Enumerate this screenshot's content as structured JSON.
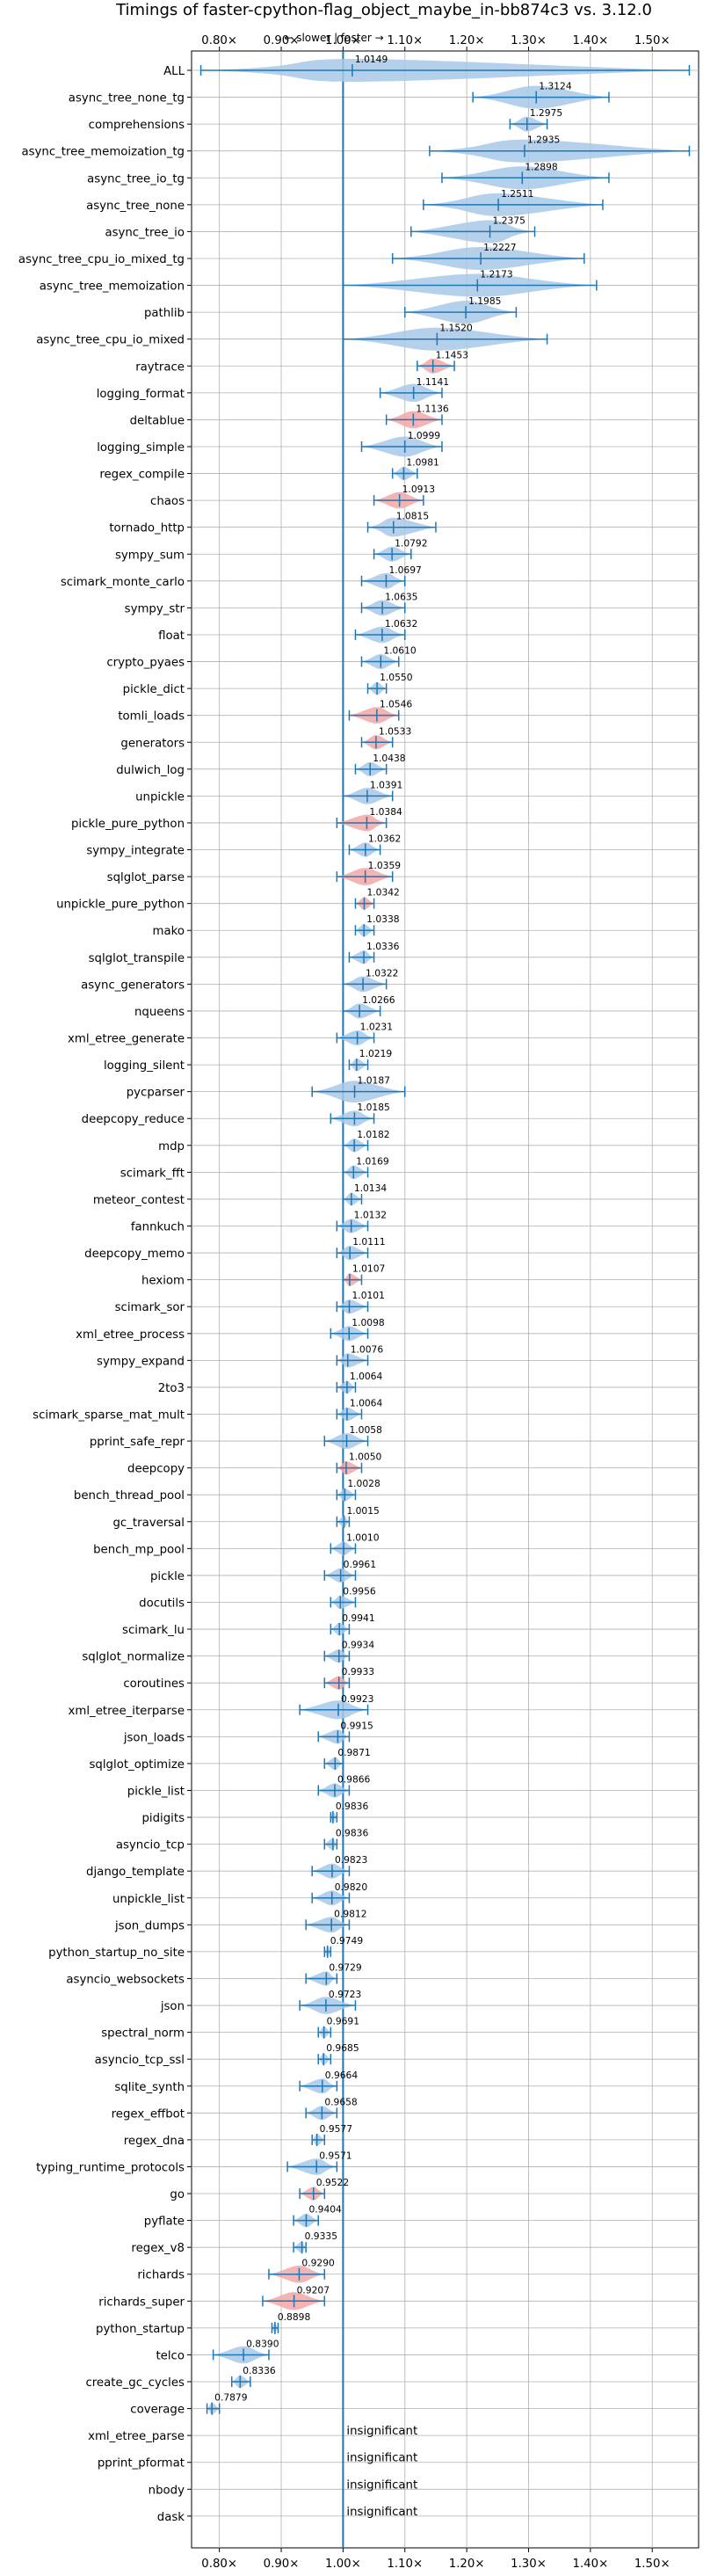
{
  "chart_data": {
    "type": "violin",
    "title": "Timings of faster-cpython-flag_object_maybe_in-bb874c3 vs. 3.12.0",
    "subtitle": "← slower | faster →",
    "xlim": [
      0.755,
      1.575
    ],
    "xticks": [
      "0.80×",
      "0.90×",
      "1.00×",
      "1.10×",
      "1.20×",
      "1.30×",
      "1.40×",
      "1.50×"
    ],
    "xtick_values": [
      0.8,
      0.9,
      1.0,
      1.1,
      1.2,
      1.3,
      1.4,
      1.5
    ],
    "grid": true,
    "reference_line": 1.0,
    "colors": {
      "faster": "#1f77b4",
      "slower": "#f4a6a6",
      "violin": "#a8c8e8",
      "insignificant_text": "insignificant"
    },
    "benchmarks": [
      {
        "name": "ALL",
        "value": 1.0149,
        "label": "1.0149",
        "min": 0.77,
        "max": 1.56,
        "color": "blue"
      },
      {
        "name": "async_tree_none_tg",
        "value": 1.3124,
        "label": "1.3124",
        "min": 1.21,
        "max": 1.43,
        "color": "blue"
      },
      {
        "name": "comprehensions",
        "value": 1.2975,
        "label": "1.2975",
        "min": 1.27,
        "max": 1.33,
        "color": "blue"
      },
      {
        "name": "async_tree_memoization_tg",
        "value": 1.2935,
        "label": "1.2935",
        "min": 1.14,
        "max": 1.56,
        "color": "blue"
      },
      {
        "name": "async_tree_io_tg",
        "value": 1.2898,
        "label": "1.2898",
        "min": 1.16,
        "max": 1.43,
        "color": "blue"
      },
      {
        "name": "async_tree_none",
        "value": 1.2511,
        "label": "1.2511",
        "min": 1.13,
        "max": 1.42,
        "color": "blue"
      },
      {
        "name": "async_tree_io",
        "value": 1.2375,
        "label": "1.2375",
        "min": 1.11,
        "max": 1.31,
        "color": "blue"
      },
      {
        "name": "async_tree_cpu_io_mixed_tg",
        "value": 1.2227,
        "label": "1.2227",
        "min": 1.08,
        "max": 1.39,
        "color": "blue"
      },
      {
        "name": "async_tree_memoization",
        "value": 1.2173,
        "label": "1.2173",
        "min": 1.0,
        "max": 1.41,
        "color": "blue"
      },
      {
        "name": "pathlib",
        "value": 1.1985,
        "label": "1.1985",
        "min": 1.1,
        "max": 1.28,
        "color": "blue"
      },
      {
        "name": "async_tree_cpu_io_mixed",
        "value": 1.152,
        "label": "1.1520",
        "min": 1.0,
        "max": 1.33,
        "color": "blue"
      },
      {
        "name": "raytrace",
        "value": 1.1453,
        "label": "1.1453",
        "min": 1.12,
        "max": 1.18,
        "color": "red"
      },
      {
        "name": "logging_format",
        "value": 1.1141,
        "label": "1.1141",
        "min": 1.06,
        "max": 1.16,
        "color": "blue"
      },
      {
        "name": "deltablue",
        "value": 1.1136,
        "label": "1.1136",
        "min": 1.07,
        "max": 1.16,
        "color": "red"
      },
      {
        "name": "logging_simple",
        "value": 1.0999,
        "label": "1.0999",
        "min": 1.03,
        "max": 1.16,
        "color": "blue"
      },
      {
        "name": "regex_compile",
        "value": 1.0981,
        "label": "1.0981",
        "min": 1.08,
        "max": 1.12,
        "color": "blue"
      },
      {
        "name": "chaos",
        "value": 1.0913,
        "label": "1.0913",
        "min": 1.05,
        "max": 1.13,
        "color": "red"
      },
      {
        "name": "tornado_http",
        "value": 1.0815,
        "label": "1.0815",
        "min": 1.04,
        "max": 1.15,
        "color": "blue"
      },
      {
        "name": "sympy_sum",
        "value": 1.0792,
        "label": "1.0792",
        "min": 1.05,
        "max": 1.11,
        "color": "blue"
      },
      {
        "name": "scimark_monte_carlo",
        "value": 1.0697,
        "label": "1.0697",
        "min": 1.03,
        "max": 1.1,
        "color": "blue"
      },
      {
        "name": "sympy_str",
        "value": 1.0635,
        "label": "1.0635",
        "min": 1.03,
        "max": 1.1,
        "color": "blue"
      },
      {
        "name": "float",
        "value": 1.0632,
        "label": "1.0632",
        "min": 1.02,
        "max": 1.1,
        "color": "blue"
      },
      {
        "name": "crypto_pyaes",
        "value": 1.061,
        "label": "1.0610",
        "min": 1.03,
        "max": 1.09,
        "color": "blue"
      },
      {
        "name": "pickle_dict",
        "value": 1.055,
        "label": "1.0550",
        "min": 1.04,
        "max": 1.07,
        "color": "blue"
      },
      {
        "name": "tomli_loads",
        "value": 1.0546,
        "label": "1.0546",
        "min": 1.01,
        "max": 1.09,
        "color": "red"
      },
      {
        "name": "generators",
        "value": 1.0533,
        "label": "1.0533",
        "min": 1.03,
        "max": 1.08,
        "color": "red"
      },
      {
        "name": "dulwich_log",
        "value": 1.0438,
        "label": "1.0438",
        "min": 1.02,
        "max": 1.07,
        "color": "blue"
      },
      {
        "name": "unpickle",
        "value": 1.0391,
        "label": "1.0391",
        "min": 1.0,
        "max": 1.08,
        "color": "blue"
      },
      {
        "name": "pickle_pure_python",
        "value": 1.0384,
        "label": "1.0384",
        "min": 0.99,
        "max": 1.07,
        "color": "red"
      },
      {
        "name": "sympy_integrate",
        "value": 1.0362,
        "label": "1.0362",
        "min": 1.01,
        "max": 1.06,
        "color": "blue"
      },
      {
        "name": "sqlglot_parse",
        "value": 1.0359,
        "label": "1.0359",
        "min": 0.99,
        "max": 1.08,
        "color": "red"
      },
      {
        "name": "unpickle_pure_python",
        "value": 1.0342,
        "label": "1.0342",
        "min": 1.02,
        "max": 1.05,
        "color": "red"
      },
      {
        "name": "mako",
        "value": 1.0338,
        "label": "1.0338",
        "min": 1.02,
        "max": 1.05,
        "color": "blue"
      },
      {
        "name": "sqlglot_transpile",
        "value": 1.0336,
        "label": "1.0336",
        "min": 1.01,
        "max": 1.05,
        "color": "blue"
      },
      {
        "name": "async_generators",
        "value": 1.0322,
        "label": "1.0322",
        "min": 1.0,
        "max": 1.07,
        "color": "blue"
      },
      {
        "name": "nqueens",
        "value": 1.0266,
        "label": "1.0266",
        "min": 1.0,
        "max": 1.06,
        "color": "blue"
      },
      {
        "name": "xml_etree_generate",
        "value": 1.0231,
        "label": "1.0231",
        "min": 0.99,
        "max": 1.05,
        "color": "blue"
      },
      {
        "name": "logging_silent",
        "value": 1.0219,
        "label": "1.0219",
        "min": 1.01,
        "max": 1.04,
        "color": "blue"
      },
      {
        "name": "pycparser",
        "value": 1.0187,
        "label": "1.0187",
        "min": 0.95,
        "max": 1.1,
        "color": "blue"
      },
      {
        "name": "deepcopy_reduce",
        "value": 1.0185,
        "label": "1.0185",
        "min": 0.98,
        "max": 1.05,
        "color": "blue"
      },
      {
        "name": "mdp",
        "value": 1.0182,
        "label": "1.0182",
        "min": 1.0,
        "max": 1.04,
        "color": "blue"
      },
      {
        "name": "scimark_fft",
        "value": 1.0169,
        "label": "1.0169",
        "min": 1.0,
        "max": 1.04,
        "color": "blue"
      },
      {
        "name": "meteor_contest",
        "value": 1.0134,
        "label": "1.0134",
        "min": 1.0,
        "max": 1.03,
        "color": "blue"
      },
      {
        "name": "fannkuch",
        "value": 1.0132,
        "label": "1.0132",
        "min": 0.99,
        "max": 1.04,
        "color": "blue"
      },
      {
        "name": "deepcopy_memo",
        "value": 1.0111,
        "label": "1.0111",
        "min": 0.99,
        "max": 1.04,
        "color": "blue"
      },
      {
        "name": "hexiom",
        "value": 1.0107,
        "label": "1.0107",
        "min": 1.0,
        "max": 1.03,
        "color": "red"
      },
      {
        "name": "scimark_sor",
        "value": 1.0101,
        "label": "1.0101",
        "min": 0.99,
        "max": 1.04,
        "color": "blue"
      },
      {
        "name": "xml_etree_process",
        "value": 1.0098,
        "label": "1.0098",
        "min": 0.98,
        "max": 1.04,
        "color": "blue"
      },
      {
        "name": "sympy_expand",
        "value": 1.0076,
        "label": "1.0076",
        "min": 0.99,
        "max": 1.04,
        "color": "blue"
      },
      {
        "name": "2to3",
        "value": 1.0064,
        "label": "1.0064",
        "min": 0.99,
        "max": 1.02,
        "color": "blue"
      },
      {
        "name": "scimark_sparse_mat_mult",
        "value": 1.0064,
        "label": "1.0064",
        "min": 0.99,
        "max": 1.03,
        "color": "blue"
      },
      {
        "name": "pprint_safe_repr",
        "value": 1.0058,
        "label": "1.0058",
        "min": 0.97,
        "max": 1.04,
        "color": "blue"
      },
      {
        "name": "deepcopy",
        "value": 1.005,
        "label": "1.0050",
        "min": 0.99,
        "max": 1.03,
        "color": "red"
      },
      {
        "name": "bench_thread_pool",
        "value": 1.0028,
        "label": "1.0028",
        "min": 0.99,
        "max": 1.02,
        "color": "blue"
      },
      {
        "name": "gc_traversal",
        "value": 1.0015,
        "label": "1.0015",
        "min": 0.99,
        "max": 1.01,
        "color": "blue"
      },
      {
        "name": "bench_mp_pool",
        "value": 1.001,
        "label": "1.0010",
        "min": 0.98,
        "max": 1.02,
        "color": "blue"
      },
      {
        "name": "pickle",
        "value": 0.9961,
        "label": "0.9961",
        "min": 0.97,
        "max": 1.02,
        "color": "blue"
      },
      {
        "name": "docutils",
        "value": 0.9956,
        "label": "0.9956",
        "min": 0.98,
        "max": 1.02,
        "color": "blue"
      },
      {
        "name": "scimark_lu",
        "value": 0.9941,
        "label": "0.9941",
        "min": 0.98,
        "max": 1.01,
        "color": "blue"
      },
      {
        "name": "sqlglot_normalize",
        "value": 0.9934,
        "label": "0.9934",
        "min": 0.97,
        "max": 1.01,
        "color": "blue"
      },
      {
        "name": "coroutines",
        "value": 0.9933,
        "label": "0.9933",
        "min": 0.97,
        "max": 1.01,
        "color": "red"
      },
      {
        "name": "xml_etree_iterparse",
        "value": 0.9923,
        "label": "0.9923",
        "min": 0.93,
        "max": 1.04,
        "color": "blue"
      },
      {
        "name": "json_loads",
        "value": 0.9915,
        "label": "0.9915",
        "min": 0.96,
        "max": 1.01,
        "color": "blue"
      },
      {
        "name": "sqlglot_optimize",
        "value": 0.9871,
        "label": "0.9871",
        "min": 0.97,
        "max": 1.0,
        "color": "blue"
      },
      {
        "name": "pickle_list",
        "value": 0.9866,
        "label": "0.9866",
        "min": 0.96,
        "max": 1.01,
        "color": "blue"
      },
      {
        "name": "pidigits",
        "value": 0.9836,
        "label": "0.9836",
        "min": 0.98,
        "max": 0.99,
        "color": "blue"
      },
      {
        "name": "asyncio_tcp",
        "value": 0.9836,
        "label": "0.9836",
        "min": 0.97,
        "max": 0.99,
        "color": "blue"
      },
      {
        "name": "django_template",
        "value": 0.9823,
        "label": "0.9823",
        "min": 0.95,
        "max": 1.01,
        "color": "blue"
      },
      {
        "name": "unpickle_list",
        "value": 0.982,
        "label": "0.9820",
        "min": 0.95,
        "max": 1.01,
        "color": "blue"
      },
      {
        "name": "json_dumps",
        "value": 0.9812,
        "label": "0.9812",
        "min": 0.94,
        "max": 1.01,
        "color": "blue"
      },
      {
        "name": "python_startup_no_site",
        "value": 0.9749,
        "label": "0.9749",
        "min": 0.97,
        "max": 0.98,
        "color": "blue"
      },
      {
        "name": "asyncio_websockets",
        "value": 0.9729,
        "label": "0.9729",
        "min": 0.94,
        "max": 0.99,
        "color": "blue"
      },
      {
        "name": "json",
        "value": 0.9723,
        "label": "0.9723",
        "min": 0.93,
        "max": 1.02,
        "color": "blue"
      },
      {
        "name": "spectral_norm",
        "value": 0.9691,
        "label": "0.9691",
        "min": 0.96,
        "max": 0.98,
        "color": "blue"
      },
      {
        "name": "asyncio_tcp_ssl",
        "value": 0.9685,
        "label": "0.9685",
        "min": 0.96,
        "max": 0.98,
        "color": "blue"
      },
      {
        "name": "sqlite_synth",
        "value": 0.9664,
        "label": "0.9664",
        "min": 0.93,
        "max": 0.99,
        "color": "blue"
      },
      {
        "name": "regex_effbot",
        "value": 0.9658,
        "label": "0.9658",
        "min": 0.94,
        "max": 0.99,
        "color": "blue"
      },
      {
        "name": "regex_dna",
        "value": 0.9577,
        "label": "0.9577",
        "min": 0.95,
        "max": 0.97,
        "color": "blue"
      },
      {
        "name": "typing_runtime_protocols",
        "value": 0.9571,
        "label": "0.9571",
        "min": 0.91,
        "max": 0.99,
        "color": "blue"
      },
      {
        "name": "go",
        "value": 0.9522,
        "label": "0.9522",
        "min": 0.93,
        "max": 0.97,
        "color": "red"
      },
      {
        "name": "pyflate",
        "value": 0.9404,
        "label": "0.9404",
        "min": 0.92,
        "max": 0.96,
        "color": "blue"
      },
      {
        "name": "regex_v8",
        "value": 0.9335,
        "label": "0.9335",
        "min": 0.92,
        "max": 0.94,
        "color": "blue"
      },
      {
        "name": "richards",
        "value": 0.929,
        "label": "0.9290",
        "min": 0.88,
        "max": 0.97,
        "color": "red"
      },
      {
        "name": "richards_super",
        "value": 0.9207,
        "label": "0.9207",
        "min": 0.87,
        "max": 0.97,
        "color": "red"
      },
      {
        "name": "python_startup",
        "value": 0.8898,
        "label": "0.8898",
        "min": 0.885,
        "max": 0.895,
        "color": "blue"
      },
      {
        "name": "telco",
        "value": 0.839,
        "label": "0.8390",
        "min": 0.79,
        "max": 0.88,
        "color": "blue"
      },
      {
        "name": "create_gc_cycles",
        "value": 0.8336,
        "label": "0.8336",
        "min": 0.82,
        "max": 0.85,
        "color": "blue"
      },
      {
        "name": "coverage",
        "value": 0.7879,
        "label": "0.7879",
        "min": 0.78,
        "max": 0.8,
        "color": "blue"
      },
      {
        "name": "xml_etree_parse",
        "insignificant": true
      },
      {
        "name": "pprint_pformat",
        "insignificant": true
      },
      {
        "name": "nbody",
        "insignificant": true
      },
      {
        "name": "dask",
        "insignificant": true
      }
    ]
  }
}
